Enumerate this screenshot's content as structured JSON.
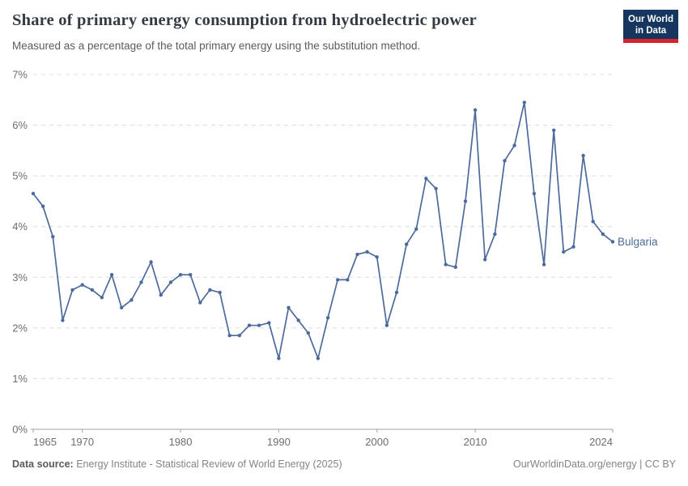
{
  "header": {
    "title": "Share of primary energy consumption from hydroelectric power",
    "subtitle": "Measured as a percentage of the total primary energy using the substitution method.",
    "logo": {
      "line1": "Our World",
      "line2": "in Data",
      "bg_color": "#16365f",
      "accent_color": "#d6232d"
    }
  },
  "chart_data": {
    "type": "line",
    "title": "Share of primary energy consumption from hydroelectric power",
    "subtitle": "Measured as a percentage of the total primary energy using the substitution method.",
    "xlabel": "",
    "ylabel": "",
    "xlim": [
      1965,
      2024
    ],
    "ylim": [
      0,
      7
    ],
    "x_ticks": [
      1965,
      1970,
      1980,
      1990,
      2000,
      2010,
      2024
    ],
    "y_ticks": [
      0,
      1,
      2,
      3,
      4,
      5,
      6,
      7
    ],
    "y_tick_suffix": "%",
    "grid": "horizontal-dashed",
    "legend": "series-end-label",
    "series": [
      {
        "name": "Bulgaria",
        "color": "#4c6a9c",
        "years": [
          1965,
          1966,
          1967,
          1968,
          1969,
          1970,
          1971,
          1972,
          1973,
          1974,
          1975,
          1976,
          1977,
          1978,
          1979,
          1980,
          1981,
          1982,
          1983,
          1984,
          1985,
          1986,
          1987,
          1988,
          1989,
          1990,
          1991,
          1992,
          1993,
          1994,
          1995,
          1996,
          1997,
          1998,
          1999,
          2000,
          2001,
          2002,
          2003,
          2004,
          2005,
          2006,
          2007,
          2008,
          2009,
          2010,
          2011,
          2012,
          2013,
          2014,
          2015,
          2016,
          2017,
          2018,
          2019,
          2020,
          2021,
          2022,
          2023,
          2024
        ],
        "values": [
          4.65,
          4.4,
          3.8,
          2.15,
          2.75,
          2.85,
          2.75,
          2.6,
          3.05,
          2.4,
          2.55,
          2.9,
          3.3,
          2.65,
          2.9,
          3.05,
          3.05,
          2.5,
          2.75,
          2.7,
          1.85,
          1.85,
          2.05,
          2.05,
          2.1,
          1.4,
          2.4,
          2.15,
          1.9,
          1.4,
          2.2,
          2.95,
          2.95,
          3.45,
          3.5,
          3.4,
          2.05,
          2.7,
          3.65,
          3.95,
          4.95,
          4.75,
          3.25,
          3.2,
          4.5,
          6.3,
          3.35,
          3.85,
          5.3,
          5.6,
          6.45,
          4.65,
          3.25,
          5.9,
          3.5,
          3.6,
          5.4,
          4.1,
          3.85,
          3.7
        ]
      }
    ]
  },
  "footer": {
    "source_label": "Data source:",
    "source_text": "Energy Institute - Statistical Review of World Energy (2025)",
    "credit": "OurWorldinData.org/energy | CC BY"
  }
}
